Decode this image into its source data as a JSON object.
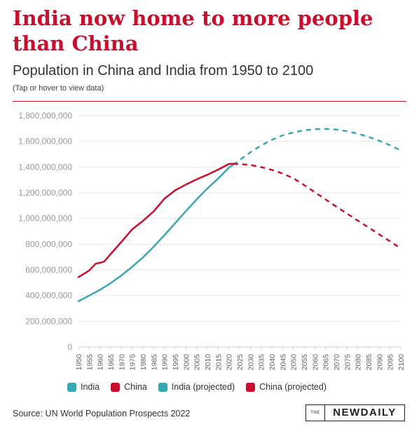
{
  "header": {
    "title": "India now home to more people than China",
    "subtitle": "Population in China and India from 1950 to 2100",
    "note": "(Tap or hover to view data)"
  },
  "colors": {
    "india": "#3aa7b1",
    "china": "#c8102e",
    "grid": "#e6e6e6"
  },
  "legend": [
    {
      "label": "India",
      "color": "#3aa7b1"
    },
    {
      "label": "China",
      "color": "#c8102e"
    },
    {
      "label": "India (projected)",
      "color": "#3aa7b1"
    },
    {
      "label": "China (projected)",
      "color": "#c8102e"
    }
  ],
  "footer": {
    "source": "Source: UN World Population Prospects 2022",
    "brand_the": "THE",
    "brand_name": "NEWDAILY"
  },
  "chart_data": {
    "type": "line",
    "title": "India now home to more people than China",
    "subtitle": "Population in China and India from 1950 to 2100",
    "xlabel": "",
    "ylabel": "",
    "ylim": [
      0,
      1800000000
    ],
    "xlim": [
      1950,
      2100
    ],
    "grid": true,
    "legend_position": "bottom",
    "y_ticks": [
      {
        "value": 0,
        "label": "0"
      },
      {
        "value": 200000000,
        "label": "200,000,000"
      },
      {
        "value": 400000000,
        "label": "400,000,000"
      },
      {
        "value": 600000000,
        "label": "600,000,000"
      },
      {
        "value": 800000000,
        "label": "800,000,000"
      },
      {
        "value": 1000000000,
        "label": "1,000,000,000"
      },
      {
        "value": 1200000000,
        "label": "1,200,000,000"
      },
      {
        "value": 1400000000,
        "label": "1,400,000,000"
      },
      {
        "value": 1600000000,
        "label": "1,600,000,000"
      },
      {
        "value": 1800000000,
        "label": "1,800,000,000"
      }
    ],
    "x_ticks": [
      "1950",
      "1955",
      "1960",
      "1965",
      "1970",
      "1975",
      "1980",
      "1985",
      "1990",
      "1995",
      "2000",
      "2005",
      "2010",
      "2015",
      "2020",
      "2025",
      "2030",
      "2035",
      "2040",
      "2045",
      "2050",
      "2055",
      "2060",
      "2065",
      "2070",
      "2075",
      "2080",
      "2085",
      "2090",
      "2095",
      "2100"
    ],
    "series": [
      {
        "name": "India",
        "color": "#3aa7b1",
        "dashed": false,
        "x": [
          1950,
          1955,
          1960,
          1965,
          1970,
          1975,
          1980,
          1985,
          1990,
          1995,
          2000,
          2005,
          2010,
          2015,
          2020,
          2022
        ],
        "y": [
          357000000,
          400000000,
          445000000,
          497000000,
          557000000,
          624000000,
          697000000,
          780000000,
          870000000,
          964000000,
          1057000000,
          1148000000,
          1234000000,
          1310000000,
          1396000000,
          1417000000
        ]
      },
      {
        "name": "China",
        "color": "#c8102e",
        "dashed": false,
        "x": [
          1950,
          1955,
          1958,
          1960,
          1962,
          1965,
          1970,
          1975,
          1980,
          1985,
          1990,
          1995,
          2000,
          2005,
          2010,
          2015,
          2020,
          2022
        ],
        "y": [
          544000000,
          595000000,
          648000000,
          655000000,
          665000000,
          724000000,
          818000000,
          916000000,
          981000000,
          1055000000,
          1154000000,
          1219000000,
          1264000000,
          1304000000,
          1341000000,
          1380000000,
          1424000000,
          1426000000
        ]
      },
      {
        "name": "India (projected)",
        "color": "#3aa7b1",
        "dashed": true,
        "x": [
          2022,
          2025,
          2030,
          2035,
          2040,
          2045,
          2050,
          2055,
          2060,
          2065,
          2070,
          2075,
          2080,
          2085,
          2090,
          2095,
          2100
        ],
        "y": [
          1417000000,
          1455000000,
          1515000000,
          1568000000,
          1612000000,
          1647000000,
          1670000000,
          1686000000,
          1695000000,
          1697000000,
          1692000000,
          1679000000,
          1660000000,
          1635000000,
          1605000000,
          1570000000,
          1530000000
        ]
      },
      {
        "name": "China (projected)",
        "color": "#c8102e",
        "dashed": true,
        "x": [
          2022,
          2025,
          2030,
          2035,
          2040,
          2045,
          2050,
          2055,
          2060,
          2065,
          2070,
          2075,
          2080,
          2085,
          2090,
          2095,
          2100
        ],
        "y": [
          1426000000,
          1423000000,
          1416000000,
          1400000000,
          1378000000,
          1350000000,
          1313000000,
          1260000000,
          1205000000,
          1148000000,
          1092000000,
          1038000000,
          983000000,
          930000000,
          876000000,
          822000000,
          767000000
        ]
      }
    ]
  }
}
